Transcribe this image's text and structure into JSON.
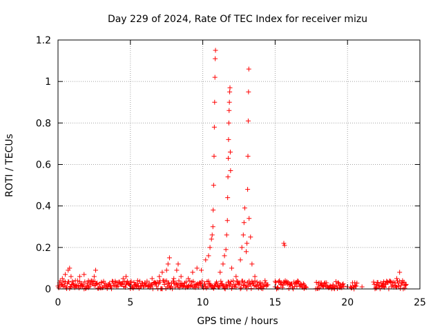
{
  "chart_data": {
    "type": "scatter",
    "title": "Day 229 of 2024, Rate Of TEC Index for receiver mizu",
    "xlabel": "GPS time / hours",
    "ylabel": "ROTI / TECUs",
    "xlim": [
      0,
      25
    ],
    "ylim": [
      0,
      1.2
    ],
    "x_ticks": [
      0,
      5,
      10,
      15,
      20,
      25
    ],
    "x_tick_labels": [
      "0",
      "5",
      "10",
      "15",
      "20",
      "25"
    ],
    "y_ticks": [
      0,
      0.2,
      0.4,
      0.6,
      0.8,
      1.0,
      1.2
    ],
    "y_tick_labels": [
      "0",
      "0.2",
      "0.4",
      "0.6",
      "0.8",
      "1",
      "1.2"
    ],
    "grid": true,
    "marker": "+",
    "color": "#ff0000",
    "series": [
      {
        "name": "ROTI",
        "points": [
          [
            0.1,
            0.02
          ],
          [
            0.3,
            0.05
          ],
          [
            0.5,
            0.07
          ],
          [
            0.7,
            0.09
          ],
          [
            0.8,
            0.1
          ],
          [
            0.9,
            0.06
          ],
          [
            1.2,
            0.04
          ],
          [
            1.5,
            0.06
          ],
          [
            1.8,
            0.07
          ],
          [
            2.1,
            0.04
          ],
          [
            2.5,
            0.06
          ],
          [
            2.6,
            0.09
          ],
          [
            3.0,
            0.03
          ],
          [
            3.5,
            0.02
          ],
          [
            4.0,
            0.03
          ],
          [
            4.5,
            0.05
          ],
          [
            4.7,
            0.06
          ],
          [
            5.0,
            0.03
          ],
          [
            5.5,
            0.04
          ],
          [
            6.0,
            0.03
          ],
          [
            6.5,
            0.05
          ],
          [
            7.0,
            0.06
          ],
          [
            7.2,
            0.08
          ],
          [
            7.5,
            0.09
          ],
          [
            7.6,
            0.12
          ],
          [
            7.7,
            0.15
          ],
          [
            8.0,
            0.05
          ],
          [
            8.2,
            0.09
          ],
          [
            8.3,
            0.12
          ],
          [
            8.5,
            0.06
          ],
          [
            9.0,
            0.05
          ],
          [
            9.3,
            0.08
          ],
          [
            9.6,
            0.1
          ],
          [
            9.9,
            0.09
          ],
          [
            10.2,
            0.14
          ],
          [
            10.4,
            0.16
          ],
          [
            10.5,
            0.2
          ],
          [
            10.6,
            0.24
          ],
          [
            10.65,
            0.26
          ],
          [
            10.7,
            0.3
          ],
          [
            10.72,
            0.38
          ],
          [
            10.75,
            0.5
          ],
          [
            10.78,
            0.64
          ],
          [
            10.8,
            0.78
          ],
          [
            10.82,
            0.9
          ],
          [
            10.84,
            1.02
          ],
          [
            10.86,
            1.11
          ],
          [
            10.88,
            1.15
          ],
          [
            11.2,
            0.08
          ],
          [
            11.4,
            0.12
          ],
          [
            11.5,
            0.16
          ],
          [
            11.6,
            0.19
          ],
          [
            11.65,
            0.26
          ],
          [
            11.7,
            0.33
          ],
          [
            11.72,
            0.44
          ],
          [
            11.74,
            0.54
          ],
          [
            11.76,
            0.63
          ],
          [
            11.78,
            0.72
          ],
          [
            11.8,
            0.8
          ],
          [
            11.82,
            0.86
          ],
          [
            11.84,
            0.9
          ],
          [
            11.86,
            0.95
          ],
          [
            11.88,
            0.97
          ],
          [
            11.9,
            0.66
          ],
          [
            11.92,
            0.57
          ],
          [
            12.0,
            0.1
          ],
          [
            12.3,
            0.06
          ],
          [
            12.6,
            0.14
          ],
          [
            12.7,
            0.2
          ],
          [
            12.8,
            0.26
          ],
          [
            12.85,
            0.32
          ],
          [
            12.9,
            0.39
          ],
          [
            13.0,
            0.18
          ],
          [
            13.05,
            0.22
          ],
          [
            13.1,
            0.48
          ],
          [
            13.12,
            0.64
          ],
          [
            13.14,
            0.81
          ],
          [
            13.16,
            0.95
          ],
          [
            13.18,
            1.06
          ],
          [
            13.2,
            0.34
          ],
          [
            13.3,
            0.25
          ],
          [
            13.4,
            0.12
          ],
          [
            13.6,
            0.06
          ],
          [
            14.0,
            0.03
          ],
          [
            14.5,
            0.02
          ],
          [
            15.0,
            0.01
          ],
          [
            15.4,
            0.02
          ],
          [
            15.6,
            0.22
          ],
          [
            15.65,
            0.21
          ],
          [
            16.0,
            0.02
          ],
          [
            16.5,
            0.03
          ],
          [
            17.0,
            0.02
          ],
          [
            18.0,
            0.02
          ],
          [
            18.5,
            0.01
          ],
          [
            19.0,
            0.02
          ],
          [
            19.5,
            0.02
          ],
          [
            20.0,
            0.01
          ],
          [
            20.5,
            0.03
          ],
          [
            21.0,
            0.01
          ],
          [
            22.0,
            0.02
          ],
          [
            22.5,
            0.01
          ],
          [
            23.0,
            0.03
          ],
          [
            23.4,
            0.05
          ],
          [
            23.6,
            0.08
          ],
          [
            23.8,
            0.04
          ],
          [
            24.0,
            0.02
          ]
        ]
      }
    ],
    "baseline": {
      "description": "dense band of low ROTI values near zero",
      "ranges_hours": [
        [
          0,
          14.5
        ],
        [
          15.0,
          17.2
        ],
        [
          17.8,
          19.8
        ],
        [
          20.2,
          20.7
        ],
        [
          21.8,
          24.1
        ]
      ],
      "max_value": 0.04
    }
  }
}
